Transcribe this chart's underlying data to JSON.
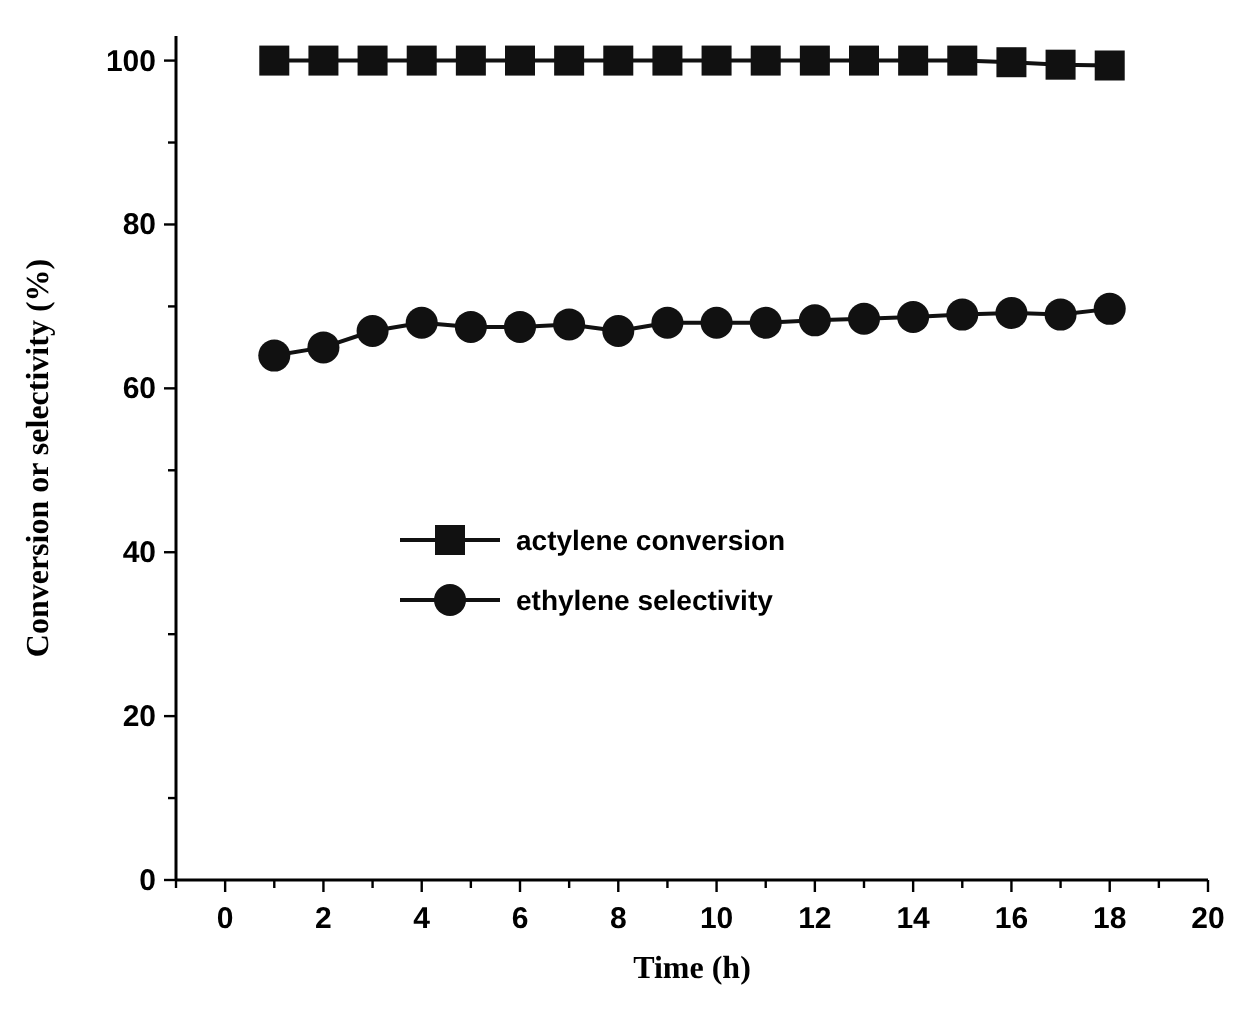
{
  "chart_data": {
    "type": "line",
    "xlabel": "Time (h)",
    "ylabel": "Conversion or selectivity (%)",
    "x": [
      1,
      2,
      3,
      4,
      5,
      6,
      7,
      8,
      9,
      10,
      11,
      12,
      13,
      14,
      15,
      16,
      17,
      18
    ],
    "series": [
      {
        "name": "actylene conversion",
        "color": "#111111",
        "marker": "square",
        "values": [
          100,
          100,
          100,
          100,
          100,
          100,
          100,
          100,
          100,
          100,
          100,
          100,
          100,
          100,
          100,
          99.8,
          99.5,
          99.4
        ]
      },
      {
        "name": "ethylene selectivity",
        "color": "#111111",
        "marker": "circle",
        "values": [
          64,
          65,
          67,
          68,
          67.5,
          67.5,
          67.8,
          67,
          68,
          68,
          68,
          68.3,
          68.5,
          68.7,
          69,
          69.2,
          69,
          69.7
        ]
      }
    ],
    "xlim": [
      -1,
      20
    ],
    "xticks": [
      {
        "value": -1,
        "label": null
      },
      0,
      {
        "value": 1,
        "label": null
      },
      2,
      {
        "value": 3,
        "label": null
      },
      4,
      {
        "value": 5,
        "label": null
      },
      6,
      {
        "value": 7,
        "label": null
      },
      8,
      {
        "value": 9,
        "label": null
      },
      10,
      {
        "value": 11,
        "label": null
      },
      12,
      {
        "value": 13,
        "label": null
      },
      14,
      {
        "value": 15,
        "label": null
      },
      16,
      {
        "value": 17,
        "label": null
      },
      18,
      {
        "value": 19,
        "label": null
      },
      20
    ],
    "ylim": [
      0,
      103
    ],
    "yticks": [
      0,
      {
        "value": 10,
        "label": null
      },
      20,
      {
        "value": 30,
        "label": null
      },
      40,
      {
        "value": 50,
        "label": null
      },
      60,
      {
        "value": 70,
        "label": null
      },
      80,
      {
        "value": 90,
        "label": null
      },
      100
    ],
    "legend": "center left",
    "grid": false,
    "line_style": "solid"
  }
}
